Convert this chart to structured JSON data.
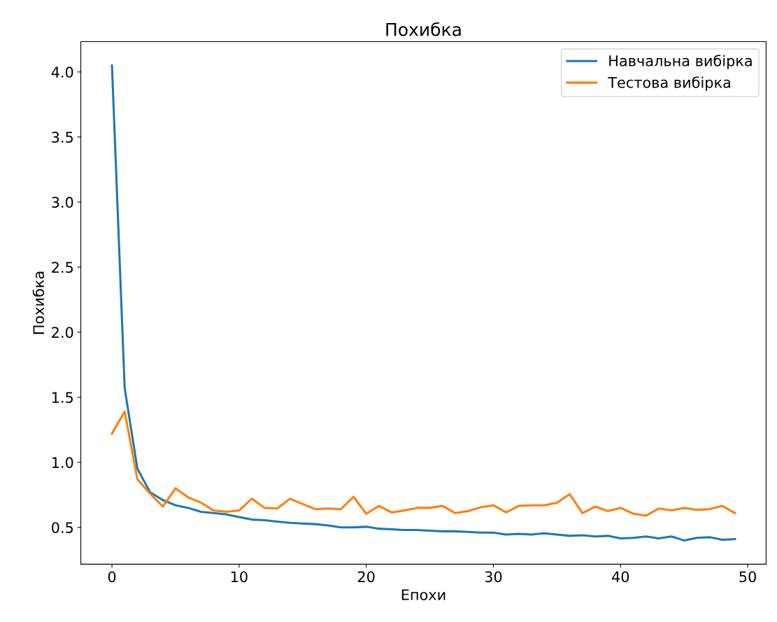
{
  "chart_data": {
    "type": "line",
    "title": "Похибка",
    "xlabel": "Епохи",
    "ylabel": "Похибка",
    "x": [
      0,
      1,
      2,
      3,
      4,
      5,
      6,
      7,
      8,
      9,
      10,
      11,
      12,
      13,
      14,
      15,
      16,
      17,
      18,
      19,
      20,
      21,
      22,
      23,
      24,
      25,
      26,
      27,
      28,
      29,
      30,
      31,
      32,
      33,
      34,
      35,
      36,
      37,
      38,
      39,
      40,
      41,
      42,
      43,
      44,
      45,
      46,
      47,
      48,
      49
    ],
    "series": [
      {
        "name": "Навчальна вибірка",
        "color": "#1f77b4",
        "values": [
          4.05,
          1.57,
          0.95,
          0.77,
          0.71,
          0.67,
          0.65,
          0.62,
          0.61,
          0.6,
          0.58,
          0.56,
          0.555,
          0.545,
          0.535,
          0.53,
          0.525,
          0.515,
          0.5,
          0.5,
          0.505,
          0.49,
          0.485,
          0.48,
          0.48,
          0.475,
          0.47,
          0.47,
          0.465,
          0.46,
          0.46,
          0.445,
          0.45,
          0.445,
          0.455,
          0.445,
          0.435,
          0.44,
          0.43,
          0.435,
          0.415,
          0.42,
          0.43,
          0.415,
          0.43,
          0.4,
          0.42,
          0.425,
          0.405,
          0.41
        ]
      },
      {
        "name": "Тестова вибірка",
        "color": "#ff7f0e",
        "values": [
          1.22,
          1.39,
          0.87,
          0.76,
          0.66,
          0.8,
          0.73,
          0.69,
          0.63,
          0.62,
          0.63,
          0.72,
          0.65,
          0.645,
          0.72,
          0.68,
          0.64,
          0.645,
          0.64,
          0.735,
          0.605,
          0.665,
          0.615,
          0.63,
          0.65,
          0.65,
          0.665,
          0.61,
          0.625,
          0.655,
          0.67,
          0.615,
          0.665,
          0.67,
          0.67,
          0.69,
          0.755,
          0.61,
          0.66,
          0.625,
          0.65,
          0.605,
          0.59,
          0.645,
          0.63,
          0.65,
          0.635,
          0.64,
          0.665,
          0.61
        ]
      }
    ],
    "xlim": [
      -2.45,
      51.45
    ],
    "ylim": [
      0.2175,
      4.2325
    ],
    "xticks": [
      0,
      10,
      20,
      30,
      40,
      50
    ],
    "yticks": [
      {
        "value": 0.5,
        "label": "0.5"
      },
      {
        "value": 1.0,
        "label": "1.0"
      },
      {
        "value": 1.5,
        "label": "1.5"
      },
      {
        "value": 2.0,
        "label": "2.0"
      },
      {
        "value": 2.5,
        "label": "2.5"
      },
      {
        "value": 3.0,
        "label": "3.0"
      },
      {
        "value": 3.5,
        "label": "3.5"
      },
      {
        "value": 4.0,
        "label": "4.0"
      }
    ],
    "grid": false,
    "legend": "top right"
  }
}
